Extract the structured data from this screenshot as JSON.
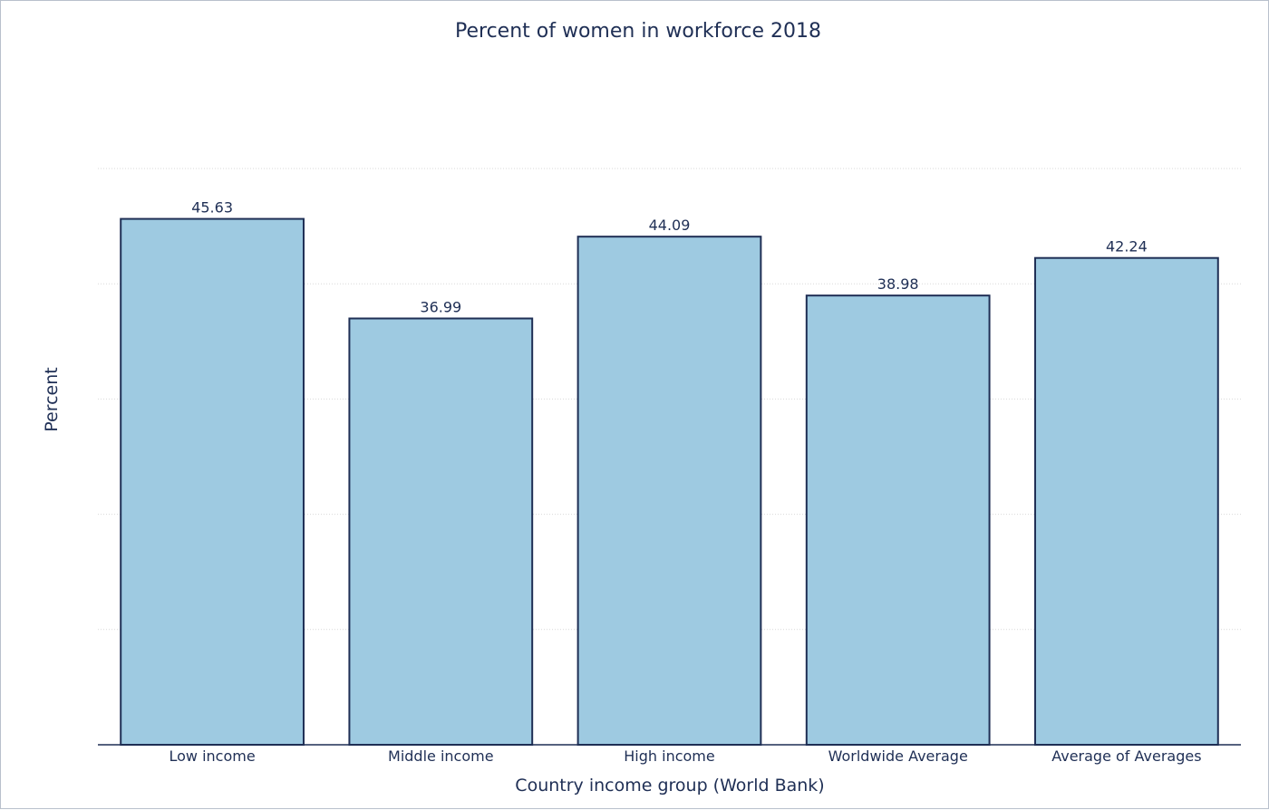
{
  "chart_data": {
    "type": "bar",
    "title": "Percent of women in workforce 2018",
    "xlabel": "Country income group (World Bank)",
    "ylabel": "Percent",
    "categories": [
      "Low income",
      "Middle income",
      "High income",
      "Worldwide Average",
      "Average of Averages"
    ],
    "values": [
      45.63,
      36.99,
      44.09,
      38.98,
      42.24
    ],
    "data_labels": [
      "45.63",
      "36.99",
      "44.09",
      "38.98",
      "42.24"
    ],
    "ylim": [
      0,
      50
    ],
    "y_gridlines": [
      10,
      20,
      30,
      40,
      50
    ],
    "y_tick_labels_shown": false,
    "grid": true,
    "legend": "none",
    "colors": {
      "bar_fill": "#9ecae1",
      "bar_stroke": "#1f2f55",
      "text": "#1f2f55",
      "grid": "#d9d9d9",
      "axis": "#1f2f55"
    }
  }
}
